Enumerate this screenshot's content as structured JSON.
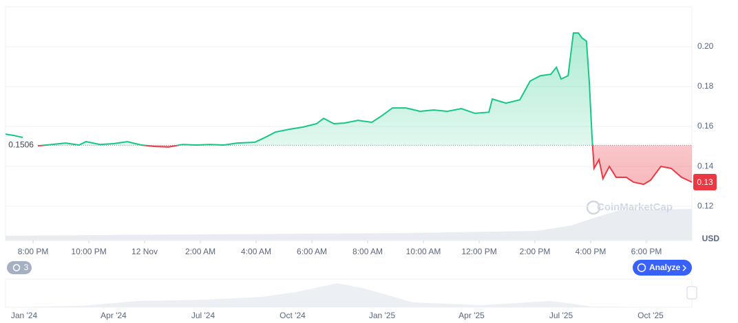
{
  "chart_data": {
    "type": "line",
    "x": [
      -0.99,
      -0.69,
      -0.37,
      null,
      0.17,
      0.67,
      1.16,
      1.65,
      1.9,
      2.4,
      2.89,
      3.38,
      3.88,
      4.37,
      4.86,
      5.36,
      5.85,
      6.35,
      6.84,
      7.33,
      7.95,
      8.32,
      8.69,
      9.19,
      9.68,
      10.17,
      10.42,
      10.79,
      11.16,
      11.65,
      12.15,
      12.52,
      12.89,
      13.38,
      13.88,
      14.37,
      14.86,
      15.36,
      15.85,
      16.35,
      16.47,
      16.96,
      17.46,
      17.83,
      18.2,
      18.57,
      18.77,
      18.94,
      19.19,
      19.38,
      19.56,
      19.68,
      19.85,
      19.95,
      20.05,
      20.12,
      20.3,
      20.44,
      20.67,
      20.91,
      21.28,
      21.53,
      21.9,
      22.15,
      22.52,
      22.89,
      23.26,
      23.63
    ],
    "series": [
      {
        "color": "#16c784",
        "below_color": "#ea3943",
        "values": [
          0.1562,
          0.1555,
          0.1545,
          null,
          0.1503,
          0.151,
          0.1517,
          0.1507,
          0.1524,
          0.151,
          0.1514,
          0.1524,
          0.1507,
          0.15,
          0.1497,
          0.151,
          0.1507,
          0.151,
          0.1507,
          0.1517,
          0.1521,
          0.1545,
          0.1572,
          0.1586,
          0.1597,
          0.1614,
          0.1641,
          0.1614,
          0.1617,
          0.1631,
          0.1621,
          0.1655,
          0.1693,
          0.1693,
          0.1676,
          0.1683,
          0.1676,
          0.169,
          0.1666,
          0.1672,
          0.1738,
          0.1717,
          0.1734,
          0.1828,
          0.1855,
          0.1862,
          0.1897,
          0.1838,
          0.1855,
          0.2069,
          0.2069,
          0.2045,
          0.2028,
          0.1821,
          0.1545,
          0.139,
          0.1434,
          0.1338,
          0.14,
          0.1345,
          0.1345,
          0.1321,
          0.131,
          0.1331,
          0.14,
          0.139,
          0.1345,
          0.1321
        ]
      }
    ],
    "reference": 0.1506,
    "last_price_label": "0.13",
    "xlim": [
      -0.99,
      23.63
    ],
    "xticks": [
      {
        "value": 0,
        "label": "8:00 PM"
      },
      {
        "value": 2,
        "label": "10:00 PM"
      },
      {
        "value": 4,
        "label": "12 Nov"
      },
      {
        "value": 6,
        "label": "2:00 AM"
      },
      {
        "value": 8,
        "label": "4:00 AM"
      },
      {
        "value": 10,
        "label": "6:00 AM"
      },
      {
        "value": 12,
        "label": "8:00 AM"
      },
      {
        "value": 14,
        "label": "10:00 AM"
      },
      {
        "value": 16,
        "label": "12:00 PM"
      },
      {
        "value": 18,
        "label": "2:00 PM"
      },
      {
        "value": 20,
        "label": "4:00 PM"
      },
      {
        "value": 22,
        "label": "6:00 PM"
      }
    ],
    "ylim": [
      0.1028,
      0.22
    ],
    "yticks": [
      {
        "value": 0.2,
        "label": "0.20"
      },
      0.18,
      0.16,
      0.14,
      0.12
    ],
    "y_unit": "USD",
    "grid": true
  },
  "watermark": "CoinMarketCap",
  "history_badge": "3",
  "analyze_button": "Analyze",
  "navigator": {
    "labels": [
      "Jan '24",
      "Apr '24",
      "Jul '24",
      "Oct '24",
      "Jan '25",
      "Apr '25",
      "Jul '25",
      "Oct '25"
    ]
  }
}
